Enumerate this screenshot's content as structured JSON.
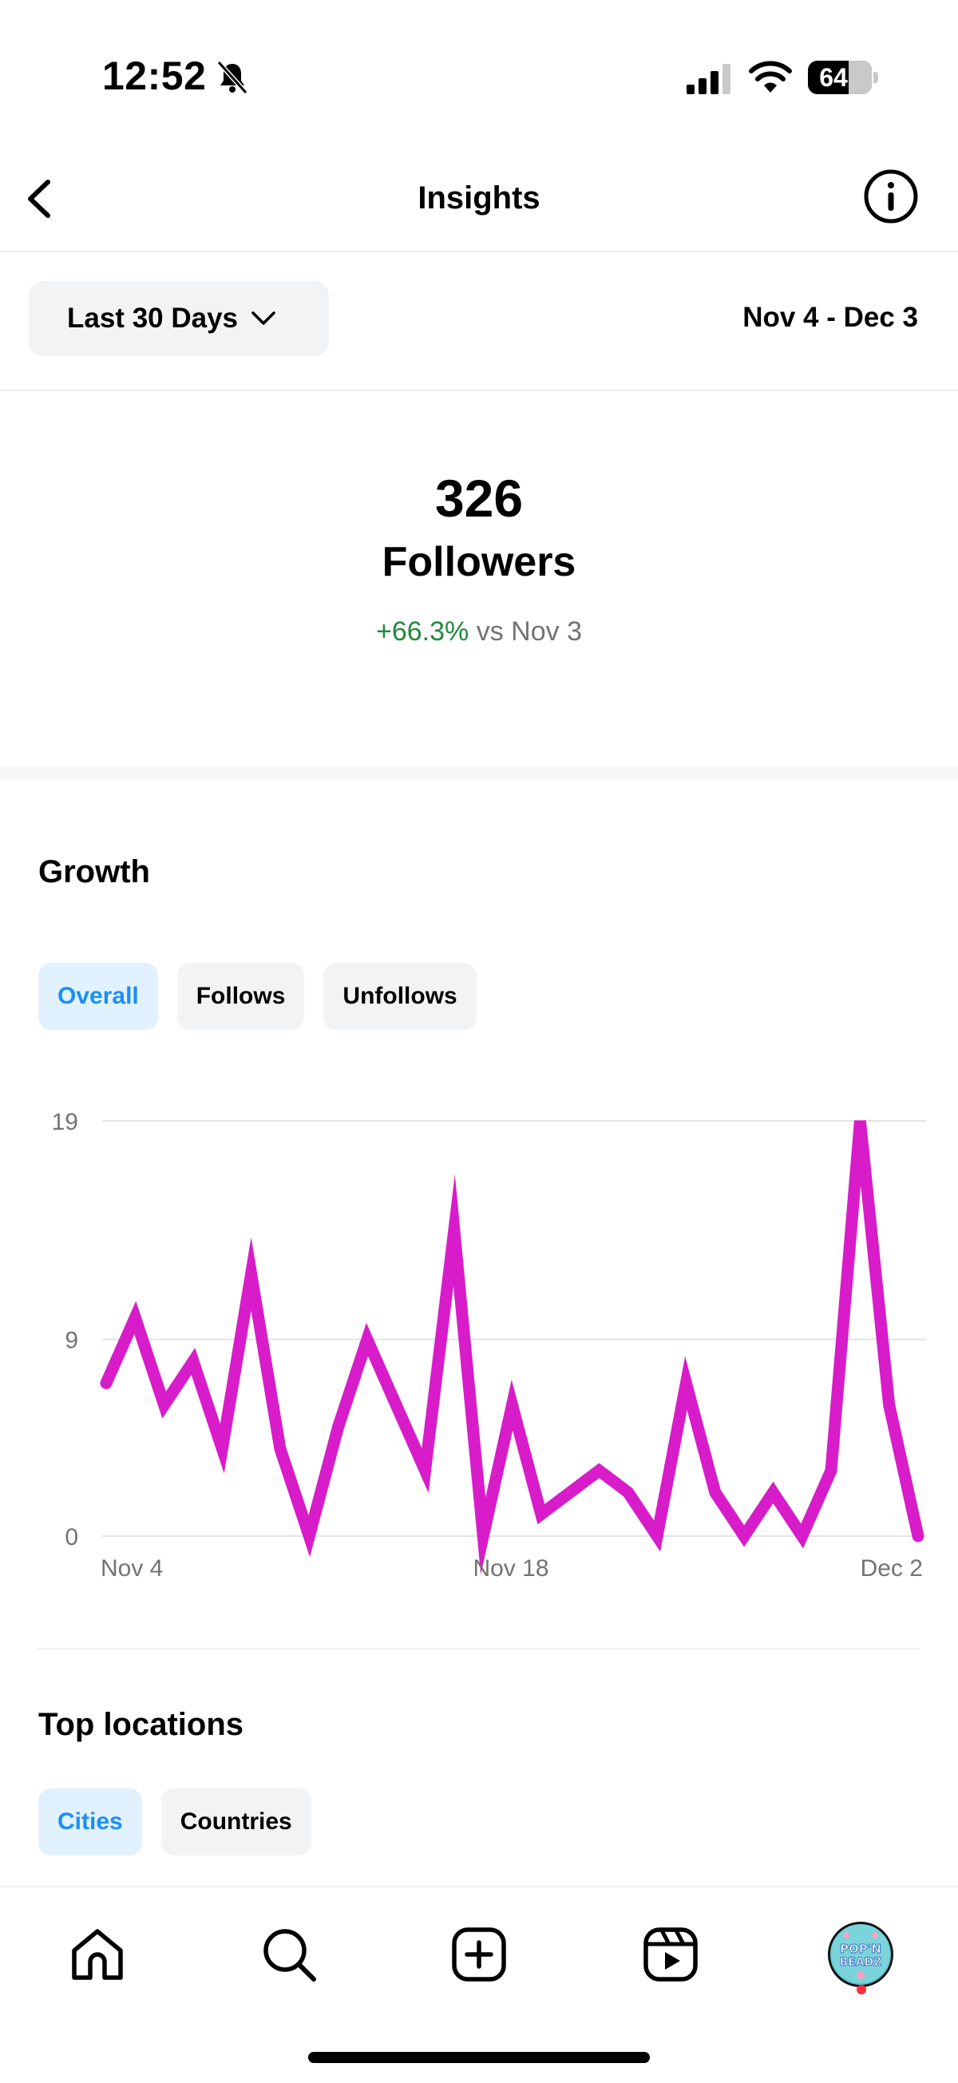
{
  "status_bar": {
    "time": "12:52",
    "battery": "64",
    "battery_level": 0.64
  },
  "header": {
    "title": "Insights"
  },
  "filter": {
    "range_label": "Last 30 Days",
    "date_range": "Nov 4 - Dec 3"
  },
  "summary": {
    "count": "326",
    "label": "Followers",
    "change": "+66.3%",
    "compare_text": " vs Nov 3"
  },
  "growth": {
    "title": "Growth",
    "tabs": [
      "Overall",
      "Follows",
      "Unfollows"
    ],
    "active_tab": "Overall"
  },
  "chart_data": {
    "type": "line",
    "y_ticks": [
      "19",
      "9",
      "0"
    ],
    "x_tick_labels": [
      "Nov 4",
      "Nov 18",
      "Dec 2"
    ],
    "ylim": [
      0,
      19
    ],
    "grid": true,
    "color": "#d81cc9",
    "x": [
      "Nov 4",
      "Nov 5",
      "Nov 6",
      "Nov 7",
      "Nov 8",
      "Nov 9",
      "Nov 10",
      "Nov 11",
      "Nov 12",
      "Nov 13",
      "Nov 14",
      "Nov 15",
      "Nov 16",
      "Nov 17",
      "Nov 18",
      "Nov 19",
      "Nov 20",
      "Nov 21",
      "Nov 22",
      "Nov 23",
      "Nov 24",
      "Nov 25",
      "Nov 26",
      "Nov 27",
      "Nov 28",
      "Nov 29",
      "Nov 30",
      "Dec 1",
      "Dec 2"
    ],
    "values": [
      7,
      10,
      6,
      8,
      4,
      12,
      4,
      0,
      5,
      9,
      6,
      3,
      14,
      0,
      6,
      1,
      2,
      3,
      2,
      0,
      7,
      2,
      0,
      2,
      0,
      3,
      19,
      6,
      0
    ]
  },
  "locations": {
    "title": "Top locations",
    "tabs": [
      "Cities",
      "Countries"
    ],
    "active_tab": "Cities"
  },
  "nav": {
    "avatar_text_line1": "POP'N",
    "avatar_text_line2": "BEADZ"
  }
}
